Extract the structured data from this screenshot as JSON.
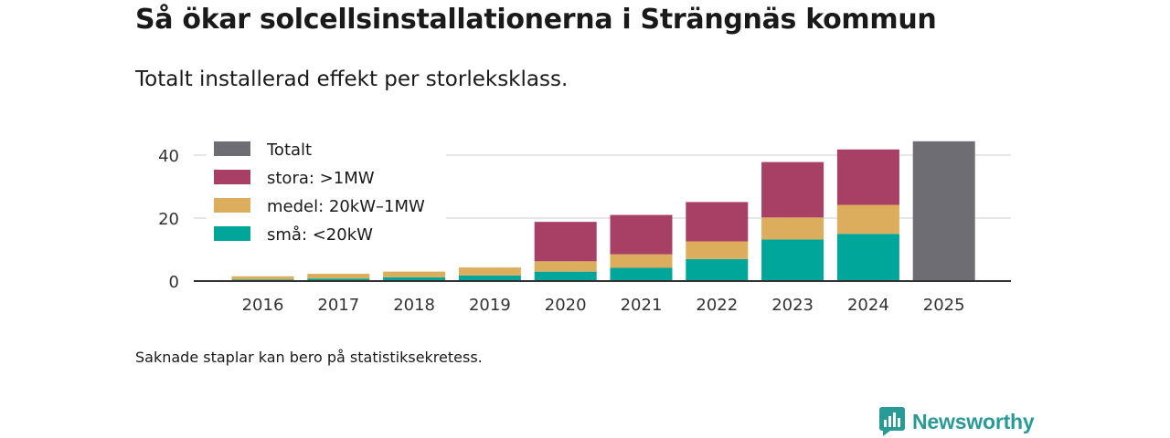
{
  "title": "Så ökar solcellsinstallationerna i Strängnäs kommun",
  "subtitle": "Totalt installerad effekt per storleksklass.",
  "note": "Saknade staplar kan bero på statistiksekretess.",
  "brand": {
    "name": "Newsworthy",
    "icon": "newsworthy-logo-icon"
  },
  "colors": {
    "totalt": "#6e6d73",
    "stora": "#a84065",
    "medel": "#dcad5c",
    "sma": "#00a69a",
    "grid": "#dddddd",
    "axis": "#333333",
    "brand": "#2a9a96"
  },
  "chart_data": {
    "type": "bar",
    "stacked": true,
    "title": "Så ökar solcellsinstallationerna i Strängnäs kommun",
    "subtitle": "Totalt installerad effekt per storleksklass.",
    "xlabel": "",
    "ylabel": "",
    "ylim": [
      0,
      46
    ],
    "yticks": [
      0,
      20,
      40
    ],
    "grid": true,
    "legend_position": "top-left",
    "categories": [
      "2016",
      "2017",
      "2018",
      "2019",
      "2020",
      "2021",
      "2022",
      "2023",
      "2024",
      "2025"
    ],
    "series": [
      {
        "key": "sma",
        "name": "små: <20kW",
        "values": [
          0.5,
          0.8,
          1.2,
          1.8,
          3.0,
          4.2,
          7.0,
          13.2,
          15.0,
          null
        ]
      },
      {
        "key": "medel",
        "name": "medel: 20kW–1MW",
        "values": [
          1.0,
          1.5,
          1.8,
          2.5,
          3.3,
          4.3,
          5.6,
          7.0,
          9.2,
          null
        ]
      },
      {
        "key": "stora",
        "name": "stora: >1MW",
        "values": [
          null,
          null,
          null,
          null,
          12.5,
          12.5,
          12.5,
          17.6,
          17.6,
          null
        ]
      },
      {
        "key": "totalt",
        "name": "Totalt",
        "values": [
          null,
          null,
          null,
          null,
          null,
          null,
          null,
          null,
          null,
          44.4
        ]
      }
    ],
    "legend_order": [
      "totalt",
      "stora",
      "medel",
      "sma"
    ]
  }
}
